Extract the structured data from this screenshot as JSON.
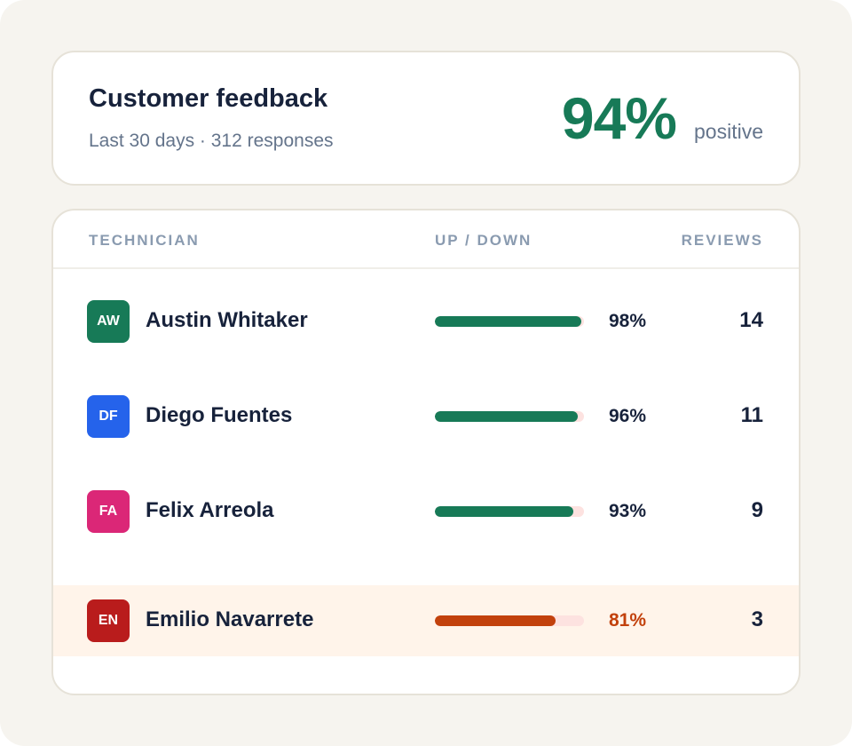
{
  "header": {
    "title": "Customer feedback",
    "subtitle": "Last 30 days · 312 responses",
    "score": "94%",
    "score_caption": "positive"
  },
  "table": {
    "columns": [
      "TECHNICIAN",
      "UP / DOWN",
      "REVIEWS"
    ],
    "rows": [
      {
        "initials": "AW",
        "name": "Austin Whitaker",
        "positive": 98,
        "positive_label": "98%",
        "reviews": "14",
        "avatar_color": "#177a57",
        "bar_color": "#177a57",
        "label_color": "#17223b"
      },
      {
        "initials": "DF",
        "name": "Diego Fuentes",
        "positive": 96,
        "positive_label": "96%",
        "reviews": "11",
        "avatar_color": "#2563eb",
        "bar_color": "#177a57",
        "label_color": "#17223b"
      },
      {
        "initials": "FA",
        "name": "Felix Arreola",
        "positive": 93,
        "positive_label": "93%",
        "reviews": "9",
        "avatar_color": "#db2777",
        "bar_color": "#177a57",
        "label_color": "#17223b"
      },
      {
        "initials": "EN",
        "name": "Emilio Navarrete",
        "positive": 81,
        "positive_label": "81%",
        "reviews": "3",
        "avatar_color": "#b91c1c",
        "bar_color": "#c2410c",
        "label_color": "#c2410c",
        "highlight": true
      }
    ]
  }
}
